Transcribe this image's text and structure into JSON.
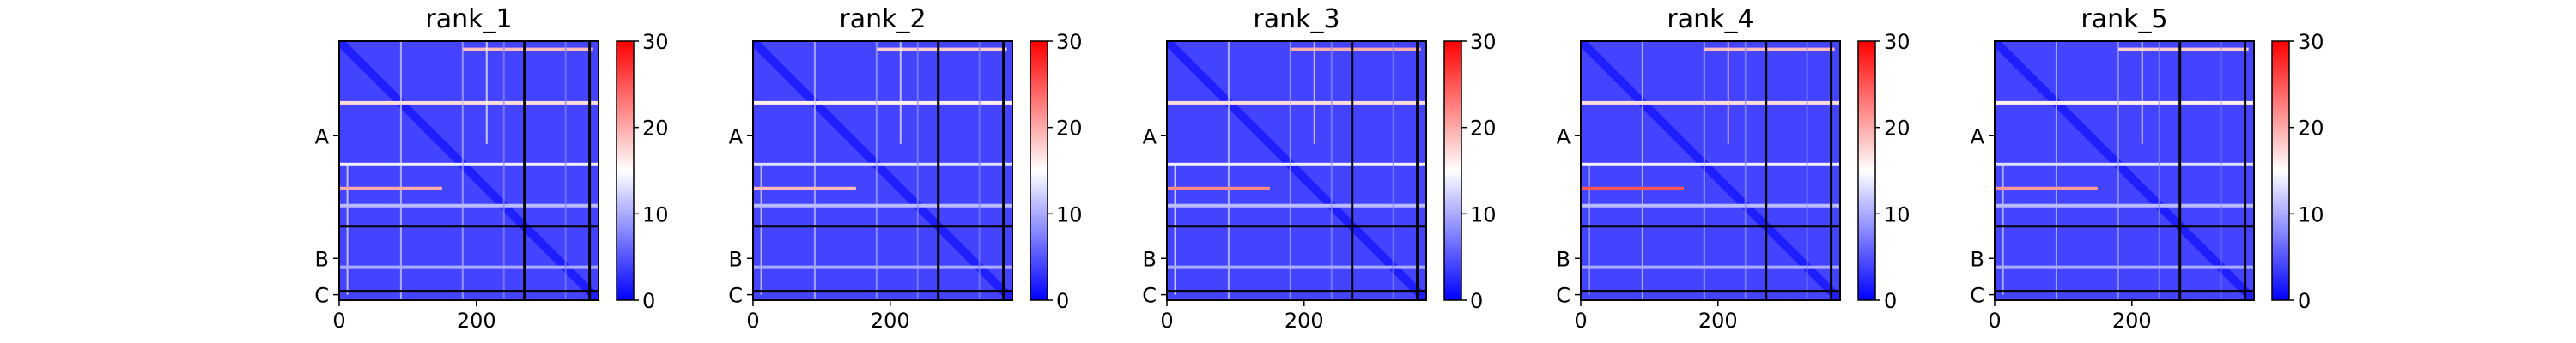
{
  "figure": {
    "colormap": {
      "name": "bwr",
      "low": "#0000ff",
      "mid": "#ffffff",
      "high": "#ff0000"
    },
    "frame_color": "#000000",
    "chain_boundary_color": "#000000"
  },
  "chart_data": [
    {
      "type": "heatmap",
      "title": "rank_1",
      "x_ticks": [
        0,
        200
      ],
      "y_chain_labels": [
        {
          "label": "A",
          "pos": 138
        },
        {
          "label": "B",
          "pos": 317
        },
        {
          "label": "C",
          "pos": 370
        }
      ],
      "chain_boundaries": [
        270,
        365
      ],
      "axis_range": [
        0,
        378
      ],
      "colorbar": {
        "min": 0,
        "max": 30,
        "ticks": [
          0,
          10,
          20,
          30
        ]
      },
      "baseline": 4,
      "bright_rows": [
        {
          "pos": 12,
          "value": 19,
          "x": [
            180,
            370
          ]
        },
        {
          "pos": 90,
          "value": 17,
          "x": [
            0,
            378
          ]
        },
        {
          "pos": 180,
          "value": 14,
          "x": [
            0,
            378
          ]
        },
        {
          "pos": 215,
          "value": 20,
          "x": [
            0,
            150
          ]
        },
        {
          "pos": 240,
          "value": 11,
          "x": [
            0,
            378
          ]
        },
        {
          "pos": 330,
          "value": 10,
          "x": [
            0,
            378
          ]
        }
      ]
    },
    {
      "type": "heatmap",
      "title": "rank_2",
      "x_ticks": [
        0,
        200
      ],
      "y_chain_labels": [
        {
          "label": "A",
          "pos": 138
        },
        {
          "label": "B",
          "pos": 317
        },
        {
          "label": "C",
          "pos": 370
        }
      ],
      "chain_boundaries": [
        270,
        365
      ],
      "axis_range": [
        0,
        378
      ],
      "colorbar": {
        "min": 0,
        "max": 30,
        "ticks": [
          0,
          10,
          20,
          30
        ]
      },
      "baseline": 4,
      "bright_rows": [
        {
          "pos": 12,
          "value": 18,
          "x": [
            180,
            370
          ]
        },
        {
          "pos": 90,
          "value": 16,
          "x": [
            0,
            378
          ]
        },
        {
          "pos": 180,
          "value": 13,
          "x": [
            0,
            378
          ]
        },
        {
          "pos": 215,
          "value": 19,
          "x": [
            0,
            150
          ]
        },
        {
          "pos": 240,
          "value": 11,
          "x": [
            0,
            378
          ]
        },
        {
          "pos": 330,
          "value": 10,
          "x": [
            0,
            378
          ]
        }
      ]
    },
    {
      "type": "heatmap",
      "title": "rank_3",
      "x_ticks": [
        0,
        200
      ],
      "y_chain_labels": [
        {
          "label": "A",
          "pos": 138
        },
        {
          "label": "B",
          "pos": 317
        },
        {
          "label": "C",
          "pos": 370
        }
      ],
      "chain_boundaries": [
        270,
        365
      ],
      "axis_range": [
        0,
        378
      ],
      "colorbar": {
        "min": 0,
        "max": 30,
        "ticks": [
          0,
          10,
          20,
          30
        ]
      },
      "baseline": 4,
      "bright_rows": [
        {
          "pos": 12,
          "value": 20,
          "x": [
            180,
            370
          ]
        },
        {
          "pos": 90,
          "value": 17,
          "x": [
            0,
            378
          ]
        },
        {
          "pos": 180,
          "value": 14,
          "x": [
            0,
            378
          ]
        },
        {
          "pos": 215,
          "value": 22,
          "x": [
            0,
            150
          ]
        },
        {
          "pos": 240,
          "value": 11,
          "x": [
            0,
            378
          ]
        },
        {
          "pos": 330,
          "value": 10,
          "x": [
            0,
            378
          ]
        }
      ]
    },
    {
      "type": "heatmap",
      "title": "rank_4",
      "x_ticks": [
        0,
        200
      ],
      "y_chain_labels": [
        {
          "label": "A",
          "pos": 138
        },
        {
          "label": "B",
          "pos": 317
        },
        {
          "label": "C",
          "pos": 370
        }
      ],
      "chain_boundaries": [
        270,
        365
      ],
      "axis_range": [
        0,
        378
      ],
      "colorbar": {
        "min": 0,
        "max": 30,
        "ticks": [
          0,
          10,
          20,
          30
        ]
      },
      "baseline": 4,
      "bright_rows": [
        {
          "pos": 12,
          "value": 19,
          "x": [
            180,
            370
          ]
        },
        {
          "pos": 90,
          "value": 17,
          "x": [
            0,
            378
          ]
        },
        {
          "pos": 180,
          "value": 14,
          "x": [
            0,
            378
          ]
        },
        {
          "pos": 215,
          "value": 25,
          "x": [
            0,
            150
          ]
        },
        {
          "pos": 240,
          "value": 11,
          "x": [
            0,
            378
          ]
        },
        {
          "pos": 330,
          "value": 10,
          "x": [
            0,
            378
          ]
        }
      ]
    },
    {
      "type": "heatmap",
      "title": "rank_5",
      "x_ticks": [
        0,
        200
      ],
      "y_chain_labels": [
        {
          "label": "A",
          "pos": 138
        },
        {
          "label": "B",
          "pos": 317
        },
        {
          "label": "C",
          "pos": 370
        }
      ],
      "chain_boundaries": [
        270,
        365
      ],
      "axis_range": [
        0,
        378
      ],
      "colorbar": {
        "min": 0,
        "max": 30,
        "ticks": [
          0,
          10,
          20,
          30
        ]
      },
      "baseline": 4,
      "bright_rows": [
        {
          "pos": 12,
          "value": 18,
          "x": [
            180,
            370
          ]
        },
        {
          "pos": 90,
          "value": 16,
          "x": [
            0,
            378
          ]
        },
        {
          "pos": 180,
          "value": 13,
          "x": [
            0,
            378
          ]
        },
        {
          "pos": 215,
          "value": 21,
          "x": [
            0,
            150
          ]
        },
        {
          "pos": 240,
          "value": 11,
          "x": [
            0,
            378
          ]
        },
        {
          "pos": 330,
          "value": 10,
          "x": [
            0,
            378
          ]
        }
      ]
    }
  ]
}
